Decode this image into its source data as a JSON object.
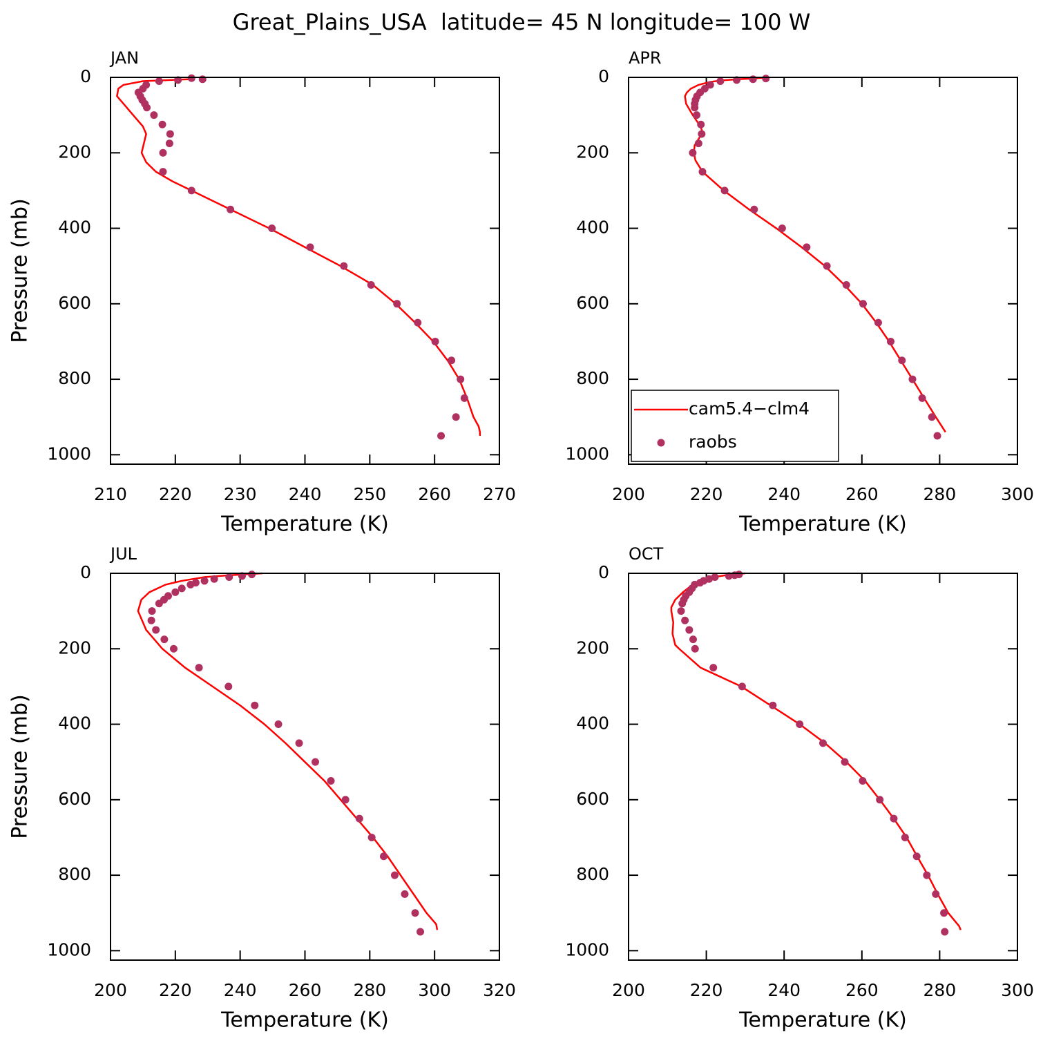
{
  "title": "Great_Plains_USA  latitude= 45 N longitude= 100 W",
  "chart_data": [
    {
      "type": "line",
      "title": "JAN",
      "xlabel": "Temperature (K)",
      "ylabel": "Pressure (mb)",
      "xlim": [
        210,
        270
      ],
      "xticks": [
        210,
        220,
        230,
        240,
        250,
        260,
        270
      ],
      "ylim": [
        1025,
        0
      ],
      "yticks": [
        0,
        200,
        400,
        600,
        800,
        1000
      ],
      "series": [
        {
          "type": "line",
          "color": "#ff0000",
          "x": [
            222,
            215,
            212,
            211.2,
            211,
            212,
            213.5,
            215,
            215.5,
            214.8,
            215.5,
            217,
            219.5,
            222.5,
            228.5,
            234.5,
            240,
            245.5,
            250.5,
            254,
            257,
            259.8,
            262,
            263.8,
            265,
            266,
            266.8,
            267,
            267
          ],
          "values": [
            5,
            10,
            20,
            30,
            50,
            70,
            100,
            130,
            150,
            200,
            225,
            250,
            275,
            300,
            350,
            400,
            450,
            500,
            550,
            600,
            650,
            700,
            750,
            800,
            850,
            900,
            925,
            940,
            950
          ]
        },
        {
          "type": "scatter",
          "color": "#b03060",
          "x": [
            222.5,
            224.2,
            220.4,
            217.5,
            215.5,
            215,
            214.3,
            214.6,
            214.9,
            215.3,
            215.6,
            216.7,
            218,
            219.2,
            219.1,
            218.1,
            218.1,
            222.5,
            228.5,
            234.9,
            240.8,
            246,
            250.2,
            254.2,
            257.4,
            260.1,
            262.6,
            264,
            264.6,
            263.3,
            261
          ],
          "values": [
            2,
            5,
            7,
            10,
            20,
            30,
            40,
            50,
            60,
            70,
            80,
            100,
            125,
            150,
            175,
            200,
            250,
            300,
            350,
            400,
            450,
            500,
            550,
            600,
            650,
            700,
            750,
            800,
            850,
            900,
            950
          ]
        }
      ]
    },
    {
      "type": "line",
      "title": "APR",
      "xlabel": "Temperature (K)",
      "ylabel": "Pressure (mb)",
      "xlim": [
        200,
        300
      ],
      "xticks": [
        200,
        220,
        240,
        260,
        280,
        300
      ],
      "ylim": [
        1025,
        0
      ],
      "yticks": [
        0,
        200,
        400,
        600,
        800,
        1000
      ],
      "legend": "lower left",
      "series": [
        {
          "name": "cam5.4−clm4",
          "type": "line",
          "color": "#ff0000",
          "x": [
            236,
            232,
            228,
            224,
            221,
            218,
            216,
            215,
            214.5,
            214.8,
            216.5,
            218.5,
            219,
            218.2,
            217,
            216.8,
            217.2,
            219,
            224.5,
            231,
            238,
            244.5,
            250.5,
            255.5,
            260,
            263.7,
            267,
            270,
            273,
            276,
            279,
            281.5
          ],
          "values": [
            0,
            3,
            5,
            8,
            12,
            20,
            30,
            40,
            50,
            70,
            100,
            130,
            145,
            160,
            180,
            200,
            220,
            250,
            300,
            350,
            400,
            450,
            500,
            550,
            600,
            650,
            700,
            750,
            800,
            850,
            900,
            940
          ]
        },
        {
          "name": "raobs",
          "type": "scatter",
          "color": "#b03060",
          "x": [
            235.3,
            232,
            227.8,
            223.6,
            221,
            219.6,
            218.4,
            217.6,
            217.2,
            217,
            217,
            217.5,
            218.6,
            218.8,
            218,
            216.5,
            219,
            224.7,
            232.3,
            239.5,
            245.8,
            251,
            256,
            260.3,
            264.2,
            267.4,
            270.3,
            273,
            275.5,
            278,
            279.4
          ],
          "values": [
            3,
            5,
            7,
            10,
            20,
            30,
            40,
            50,
            60,
            70,
            80,
            100,
            125,
            150,
            175,
            200,
            250,
            300,
            350,
            400,
            450,
            500,
            550,
            600,
            650,
            700,
            750,
            800,
            850,
            900,
            950
          ]
        }
      ]
    },
    {
      "type": "line",
      "title": "JUL",
      "xlabel": "Temperature (K)",
      "ylabel": "Pressure (mb)",
      "xlim": [
        200,
        320
      ],
      "xticks": [
        200,
        220,
        240,
        260,
        280,
        300,
        320
      ],
      "ylim": [
        1025,
        0
      ],
      "yticks": [
        0,
        200,
        400,
        600,
        800,
        1000
      ],
      "series": [
        {
          "type": "line",
          "color": "#ff0000",
          "x": [
            246.9,
            237,
            229,
            222,
            217,
            212,
            209.5,
            208.5,
            211,
            216,
            223,
            231.5,
            240,
            247.5,
            254,
            260,
            266,
            271,
            276,
            281,
            285.5,
            289.5,
            293.5,
            297.5,
            300.5,
            300.8
          ],
          "values": [
            0,
            5,
            10,
            20,
            30,
            50,
            70,
            100,
            150,
            200,
            250,
            300,
            350,
            400,
            450,
            500,
            550,
            600,
            650,
            700,
            750,
            800,
            850,
            900,
            930,
            945
          ]
        },
        {
          "type": "scatter",
          "color": "#b03060",
          "x": [
            243.6,
            240.6,
            236.6,
            232,
            229,
            226.3,
            224.7,
            222,
            220,
            217.8,
            216.5,
            215,
            212.8,
            212.6,
            214,
            216.6,
            219.5,
            227.3,
            236.4,
            244.5,
            251.8,
            258.2,
            263.2,
            268,
            272.5,
            276.8,
            280.6,
            284.3,
            287.7,
            290.8,
            294,
            295.6
          ],
          "values": [
            3,
            7,
            10,
            15,
            20,
            25,
            30,
            40,
            50,
            60,
            70,
            80,
            100,
            125,
            150,
            175,
            200,
            250,
            300,
            350,
            400,
            450,
            500,
            550,
            600,
            650,
            700,
            750,
            800,
            850,
            900,
            950
          ]
        }
      ]
    },
    {
      "type": "line",
      "title": "OCT",
      "xlabel": "Temperature (K)",
      "ylabel": "Pressure (mb)",
      "xlim": [
        200,
        300
      ],
      "xticks": [
        200,
        220,
        240,
        260,
        280,
        300
      ],
      "ylim": [
        1025,
        0
      ],
      "yticks": [
        0,
        200,
        400,
        600,
        800,
        1000
      ],
      "series": [
        {
          "type": "line",
          "color": "#ff0000",
          "x": [
            230,
            225,
            222,
            219,
            216.5,
            214,
            212,
            211,
            211,
            211.5,
            211.3,
            212,
            213,
            218.5,
            229,
            236.5,
            244,
            250.5,
            256,
            260.8,
            264.6,
            268.2,
            271.5,
            274.2,
            277,
            279.5,
            282.2,
            285,
            285.4
          ],
          "values": [
            0,
            5,
            10,
            20,
            30,
            50,
            70,
            90,
            100,
            130,
            160,
            190,
            200,
            250,
            300,
            350,
            400,
            450,
            500,
            550,
            600,
            650,
            700,
            750,
            800,
            850,
            900,
            935,
            945
          ]
        },
        {
          "type": "scatter",
          "color": "#b03060",
          "x": [
            228.4,
            227.3,
            225.8,
            222.2,
            220.7,
            219.3,
            218.4,
            217,
            216.3,
            215.6,
            214.7,
            214.2,
            213.8,
            213.5,
            214.5,
            215.6,
            216.6,
            217.1,
            221.8,
            229.2,
            237.1,
            244,
            250,
            255.6,
            260.2,
            264.6,
            268.2,
            271.1,
            274.1,
            276.7,
            279,
            281.1,
            281.3
          ],
          "values": [
            3,
            5,
            7,
            10,
            15,
            20,
            25,
            30,
            40,
            50,
            60,
            70,
            80,
            100,
            125,
            150,
            175,
            200,
            250,
            300,
            350,
            400,
            450,
            500,
            550,
            600,
            650,
            700,
            750,
            800,
            850,
            900,
            950
          ]
        }
      ]
    }
  ]
}
